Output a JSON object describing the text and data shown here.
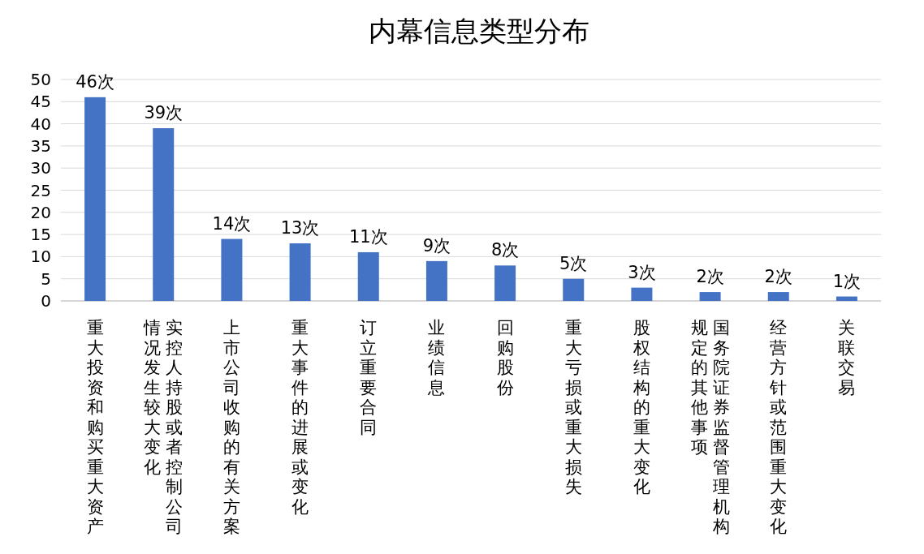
{
  "chart_data": {
    "type": "bar",
    "title": "内幕信息类型分布",
    "categories": [
      "重大投资和购买重大资产",
      "实控人持股或者控制公司情况发生较大变化",
      "上市公司收购的有关方案",
      "重大事件的进展或变化",
      "订立重要合同",
      "业绩信息",
      "回购股份",
      "重大亏损或重大损失",
      "股权结构的重大变化",
      "国务院证券监督管理机构规定的其他事项",
      "经营方针或范围重大变化",
      "关联交易"
    ],
    "values": [
      46,
      39,
      14,
      13,
      11,
      9,
      8,
      5,
      3,
      2,
      2,
      1
    ],
    "value_labels": [
      "46次",
      "39次",
      "14次",
      "13次",
      "11次",
      "9次",
      "8次",
      "5次",
      "3次",
      "2次",
      "2次",
      "1次"
    ],
    "color": "#4472c4",
    "ylim": [
      0,
      50
    ],
    "yticks": [
      0,
      5,
      10,
      15,
      20,
      25,
      30,
      35,
      40,
      45,
      50
    ],
    "grid": "y"
  }
}
